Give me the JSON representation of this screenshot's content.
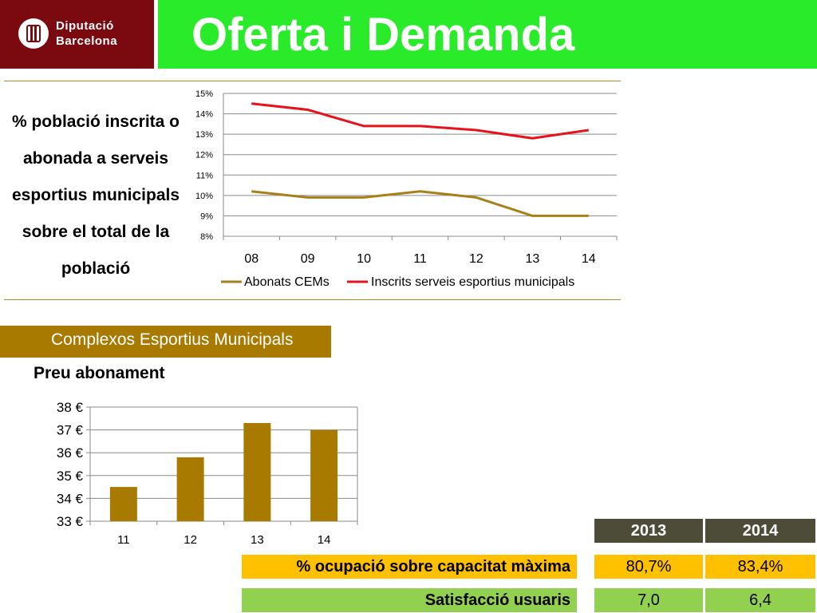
{
  "header": {
    "logo_line1": "Diputació",
    "logo_line2": "Barcelona",
    "title": "Oferta i Demanda"
  },
  "side_caption": "% població inscrita o abonada a serveis esportius municipals sobre el total de la població",
  "section_label": "Complexos Esportius Municipals",
  "bar_section_title": "Preu abonament",
  "colors": {
    "header_green": "#2aeb2a",
    "logo_red": "#7a0a10",
    "gold": "#a87a00",
    "line_gold": "#a8801a",
    "line_red": "#e8121a",
    "table_header": "#4c4c38",
    "row_yellow": "#ffc000",
    "row_green": "#92d050"
  },
  "chart_data": [
    {
      "type": "line",
      "title": "% població inscrita o abonada a serveis esportius municipals sobre el total de la població",
      "categories": [
        "08",
        "09",
        "10",
        "11",
        "12",
        "13",
        "14"
      ],
      "y_ticks": [
        "8%",
        "9%",
        "10%",
        "11%",
        "12%",
        "13%",
        "14%",
        "15%"
      ],
      "ylim": [
        8,
        15
      ],
      "grid": true,
      "legend": "bottom",
      "series": [
        {
          "name": "Abonats CEMs",
          "color": "#a8801a",
          "values": [
            10.2,
            9.9,
            9.9,
            10.2,
            9.9,
            9.0,
            9.0
          ]
        },
        {
          "name": "Inscrits serveis esportius municipals",
          "color": "#e8121a",
          "values": [
            14.5,
            14.2,
            13.4,
            13.4,
            13.2,
            12.8,
            13.2
          ]
        }
      ]
    },
    {
      "type": "bar",
      "title": "Preu abonament",
      "categories": [
        "11",
        "12",
        "13",
        "14"
      ],
      "values": [
        34.5,
        35.8,
        37.3,
        37.0
      ],
      "y_ticks": [
        "33 €",
        "34 €",
        "35 €",
        "36 €",
        "37 €",
        "38 €"
      ],
      "ylim": [
        33,
        38
      ],
      "grid": true,
      "color": "#a87a00"
    }
  ],
  "table": {
    "years": [
      "2013",
      "2014"
    ],
    "rows": [
      {
        "label": "% ocupació sobre capacitat màxima",
        "values": [
          "80,7%",
          "83,4%"
        ]
      },
      {
        "label": "Satisfacció usuaris",
        "values": [
          "7,0",
          "6,4"
        ]
      }
    ]
  }
}
